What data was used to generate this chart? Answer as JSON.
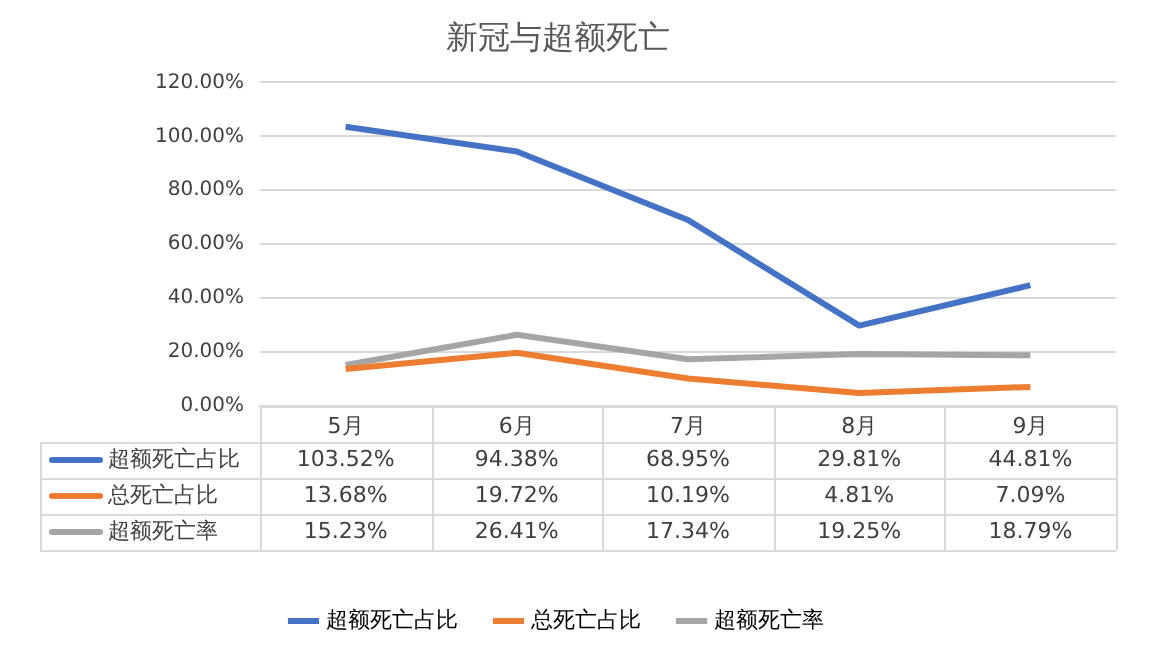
{
  "chart_data": {
    "type": "line",
    "title": "新冠与超额死亡",
    "categories": [
      "5月",
      "6月",
      "7月",
      "8月",
      "9月"
    ],
    "series": [
      {
        "name": "超额死亡占比",
        "color": "#4472c4",
        "values": [
          103.52,
          94.38,
          68.95,
          29.81,
          44.81
        ],
        "value_labels": [
          "103.52%",
          "94.38%",
          "68.95%",
          "29.81%",
          "44.81%"
        ]
      },
      {
        "name": "总死亡占比",
        "color": "#ed7d31",
        "values": [
          13.68,
          19.72,
          10.19,
          4.81,
          7.09
        ],
        "value_labels": [
          "13.68%",
          "19.72%",
          "10.19%",
          "4.81%",
          "7.09%"
        ]
      },
      {
        "name": "超额死亡率",
        "color": "#a5a5a5",
        "values": [
          15.23,
          26.41,
          17.34,
          19.25,
          18.79
        ],
        "value_labels": [
          "15.23%",
          "26.41%",
          "17.34%",
          "19.25%",
          "18.79%"
        ]
      }
    ],
    "ylim": [
      0,
      120
    ],
    "yticks": [
      {
        "value": 0,
        "label": "0.00%"
      },
      {
        "value": 20,
        "label": "20.00%"
      },
      {
        "value": 40,
        "label": "40.00%"
      },
      {
        "value": 60,
        "label": "60.00%"
      },
      {
        "value": 80,
        "label": "80.00%"
      },
      {
        "value": 100,
        "label": "100.00%"
      },
      {
        "value": 120,
        "label": "120.00%"
      }
    ],
    "grid": "y",
    "legend": "bottom",
    "marker": "none",
    "line_style": "solid"
  }
}
